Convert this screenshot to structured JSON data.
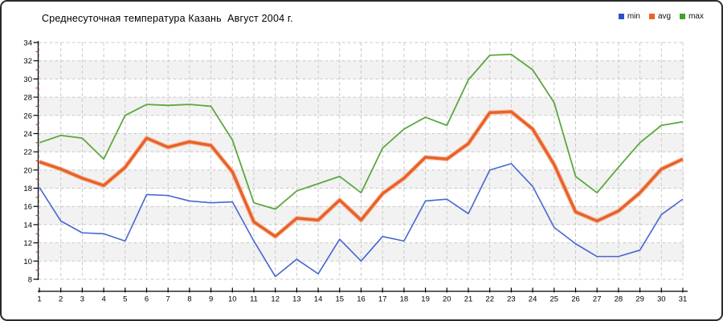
{
  "title": "Среднесуточная температура Казань  Август 2004 г.",
  "legend": {
    "position": "top-right",
    "items": [
      {
        "label": "min",
        "color": "#2b50c8"
      },
      {
        "label": "avg",
        "color": "#e8622a"
      },
      {
        "label": "max",
        "color": "#3fa32a"
      }
    ]
  },
  "chart_data": {
    "type": "line",
    "title": "Среднесуточная температура Казань  Август 2004 г.",
    "xlabel": "",
    "ylabel": "",
    "x": [
      1,
      2,
      3,
      4,
      5,
      6,
      7,
      8,
      9,
      10,
      11,
      12,
      13,
      14,
      15,
      16,
      17,
      18,
      19,
      20,
      21,
      22,
      23,
      24,
      25,
      26,
      27,
      28,
      29,
      30,
      31
    ],
    "x_tick_labels": [
      "1",
      "2",
      "3",
      "4",
      "5",
      "6",
      "7",
      "8",
      "9",
      "10",
      "11",
      "12",
      "13",
      "14",
      "15",
      "16",
      "17",
      "18",
      "19",
      "20",
      "21",
      "22",
      "23",
      "24",
      "25",
      "26",
      "27",
      "28",
      "29",
      "30",
      "31"
    ],
    "ylim": [
      8,
      34
    ],
    "y_tick_step": 2,
    "y_tick_labels": [
      "8",
      "10",
      "12",
      "14",
      "16",
      "18",
      "20",
      "22",
      "24",
      "26",
      "28",
      "30",
      "32",
      "34"
    ],
    "grid": "dashed gray, vertical per day and horizontal per 2 degrees, alternating shaded bands",
    "legend_position": "top-right",
    "series": [
      {
        "name": "min",
        "color": "#4667d2",
        "values": [
          18.1,
          14.4,
          13.1,
          13.0,
          12.2,
          17.3,
          17.2,
          16.6,
          16.4,
          16.5,
          12.2,
          8.3,
          10.2,
          8.6,
          12.4,
          10.0,
          12.7,
          12.2,
          16.6,
          16.8,
          15.2,
          20.0,
          20.7,
          18.2,
          13.7,
          11.9,
          10.5,
          10.5,
          11.2,
          15.1,
          16.8
        ]
      },
      {
        "name": "avg",
        "color": "#e8622a",
        "values": [
          20.9,
          20.1,
          19.1,
          18.3,
          20.3,
          23.5,
          22.5,
          23.1,
          22.7,
          19.8,
          14.3,
          12.7,
          14.7,
          14.5,
          16.7,
          14.5,
          17.4,
          19.1,
          21.4,
          21.2,
          22.9,
          26.3,
          26.4,
          24.5,
          20.6,
          15.4,
          14.4,
          15.5,
          17.5,
          20.1,
          21.2
        ]
      },
      {
        "name": "max",
        "color": "#5ba83e",
        "values": [
          23.0,
          23.8,
          23.5,
          21.2,
          26.0,
          27.2,
          27.1,
          27.2,
          27.0,
          23.3,
          16.4,
          15.7,
          17.7,
          18.5,
          19.3,
          17.5,
          22.4,
          24.5,
          25.8,
          24.9,
          29.9,
          32.6,
          32.7,
          31.0,
          27.4,
          19.3,
          17.5,
          20.3,
          23.0,
          24.9,
          25.3
        ]
      }
    ],
    "colors": {
      "band": "#f2f2f2",
      "grid": "#c9c9c9",
      "axis": "#000000",
      "minor_tick": "#cc2222",
      "avg_halo": "#f6a87e"
    }
  }
}
